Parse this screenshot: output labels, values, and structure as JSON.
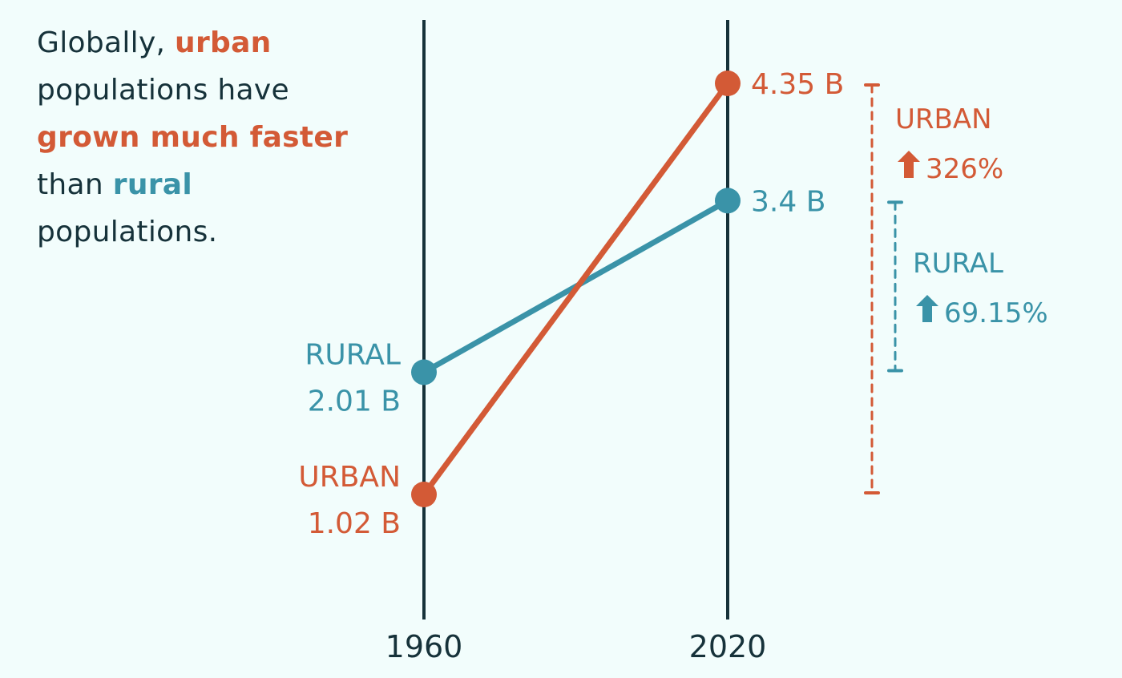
{
  "headline": {
    "part1": "Globally, ",
    "part2": "urban",
    "part3": " populations have ",
    "part4": "grown much faster",
    "part5": " than ",
    "part6": "rural",
    "part7": " populations."
  },
  "colors": {
    "urban": "#d35a36",
    "rural": "#3a93a8",
    "axis": "#16323a",
    "background": "#f2fdfc"
  },
  "chart_data": {
    "type": "line",
    "title": "Globally, urban populations have grown much faster than rural populations.",
    "x": [
      "1960",
      "2020"
    ],
    "unit": "billions",
    "ylim": [
      0,
      5
    ],
    "series": [
      {
        "name": "URBAN",
        "values": [
          1.02,
          4.35
        ],
        "labels": [
          "1.02 B",
          "4.35 B"
        ],
        "change_label": "326%",
        "color": "#d35a36"
      },
      {
        "name": "RURAL",
        "values": [
          2.01,
          3.4
        ],
        "labels": [
          "2.01 B",
          "3.4 B"
        ],
        "change_label": "69.15%",
        "color": "#3a93a8"
      }
    ],
    "annotations": {
      "urban_change_direction": "up-arrow-icon",
      "rural_change_direction": "up-arrow-icon"
    }
  }
}
